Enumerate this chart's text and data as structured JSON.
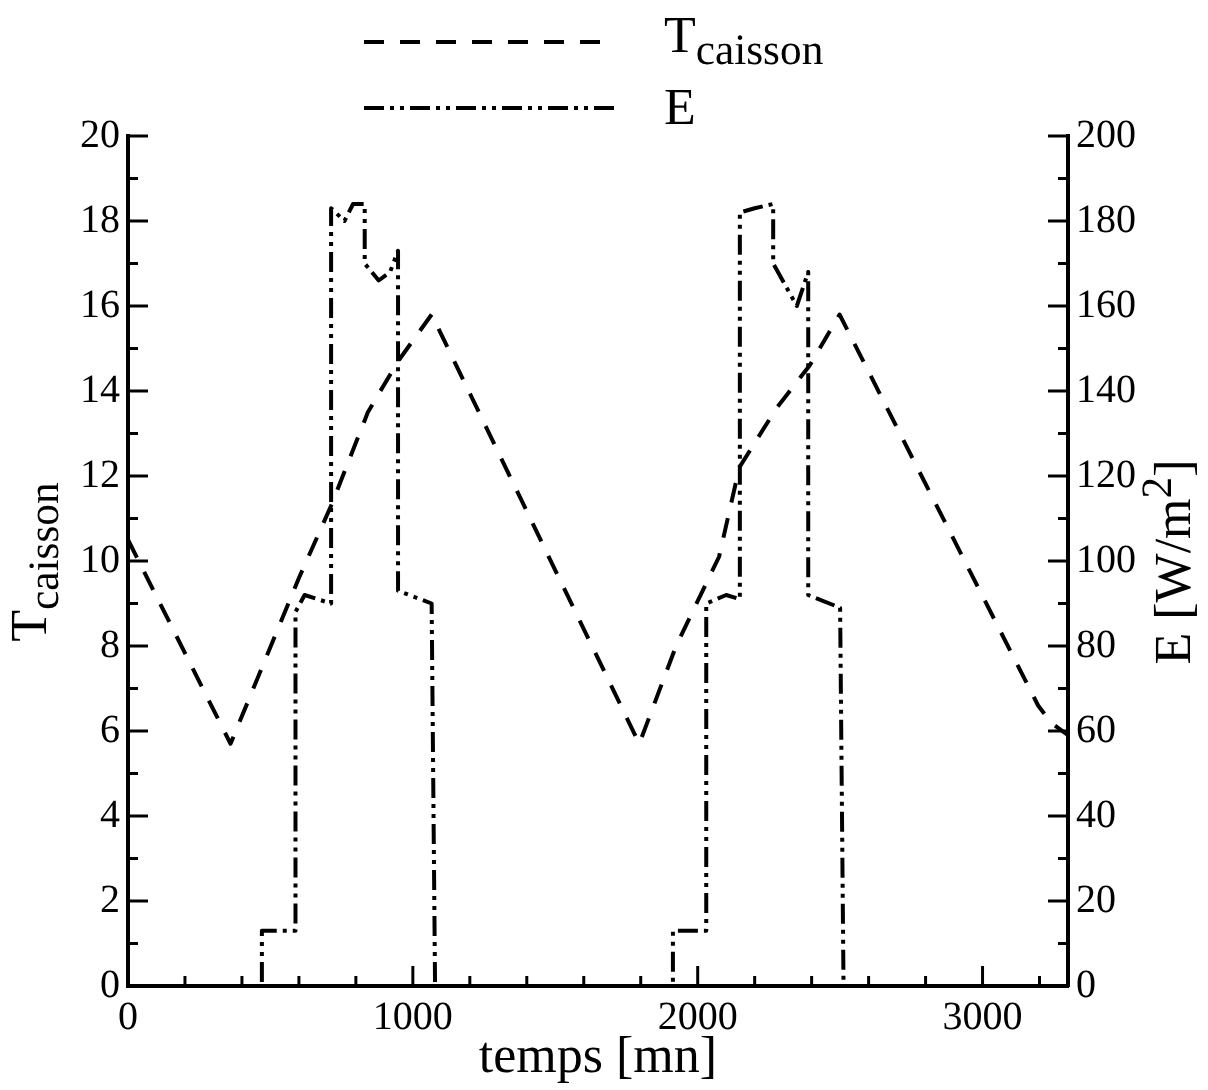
{
  "chart_data": {
    "type": "line",
    "xlabel": "temps [mn]",
    "ylabel": "T$_{caisson}$",
    "y2label": "E [W/m$^{2}$]",
    "legend": "top",
    "grid": false,
    "line_style": "dashed",
    "marker": "none",
    "xlim": [
      0,
      3300
    ],
    "xticks": [
      0,
      {
        "value": 200,
        "label": null
      },
      {
        "value": 400,
        "label": null
      },
      {
        "value": 600,
        "label": null
      },
      {
        "value": 800,
        "label": null
      },
      1000,
      {
        "value": 1200,
        "label": null
      },
      {
        "value": 1400,
        "label": null
      },
      {
        "value": 1600,
        "label": null
      },
      {
        "value": 1800,
        "label": null
      },
      2000,
      {
        "value": 2200,
        "label": null
      },
      {
        "value": 2400,
        "label": null
      },
      {
        "value": 2600,
        "label": null
      },
      {
        "value": 2800,
        "label": null
      },
      3000,
      {
        "value": 3200,
        "label": null
      }
    ],
    "ylim": [
      0,
      20
    ],
    "yticks": [
      0,
      {
        "value": 1,
        "label": null
      },
      2,
      {
        "value": 3,
        "label": null
      },
      4,
      {
        "value": 5,
        "label": null
      },
      6,
      {
        "value": 7,
        "label": null
      },
      8,
      {
        "value": 9,
        "label": null
      },
      10,
      {
        "value": 11,
        "label": null
      },
      12,
      {
        "value": 13,
        "label": null
      },
      14,
      {
        "value": 15,
        "label": null
      },
      16,
      {
        "value": 17,
        "label": null
      },
      18,
      {
        "value": 19,
        "label": null
      },
      20
    ],
    "y2lim": [
      0,
      200
    ],
    "y2ticks": [
      0,
      {
        "value": 10,
        "label": null
      },
      20,
      {
        "value": 30,
        "label": null
      },
      40,
      {
        "value": 50,
        "label": null
      },
      60,
      {
        "value": 70,
        "label": null
      },
      80,
      {
        "value": 90,
        "label": null
      },
      100,
      {
        "value": 110,
        "label": null
      },
      120,
      {
        "value": 130,
        "label": null
      },
      140,
      {
        "value": 150,
        "label": null
      },
      160,
      {
        "value": 170,
        "label": null
      },
      180,
      {
        "value": 190,
        "label": null
      },
      200
    ],
    "series": [
      {
        "name": "T$_{caisson}$",
        "color": "#000000",
        "x": [
          0,
          360,
          600,
          713,
          842,
          948,
          1066,
          1571,
          1795,
          1924,
          2075,
          2146,
          2277,
          2393,
          2498,
          3195,
          3240,
          3300
        ],
        "values": [
          10.5,
          5.7,
          9.6,
          11.3,
          13.5,
          14.7,
          15.8,
          8.8,
          5.7,
          8.0,
          10.1,
          12.2,
          13.6,
          14.6,
          15.8,
          6.6,
          6.2,
          5.9
        ]
      },
      {
        "name": "E",
        "color": "#000000",
        "line_style": "dashdotdot",
        "axis": "y2",
        "x": [
          0,
          470,
          470,
          588,
          588,
          620,
          713,
          713,
          760,
          790,
          831,
          831,
          880,
          920,
          948,
          948,
          1066,
          1066,
          1078,
          1913,
          1913,
          2030,
          2030,
          2100,
          2148,
          2148,
          2200,
          2265,
          2265,
          2348,
          2388,
          2388,
          2500,
          2500,
          2512,
          3300
        ],
        "values": [
          0,
          0,
          13,
          13,
          88,
          92,
          90,
          183,
          180,
          184,
          184,
          170,
          166,
          168,
          173,
          93,
          90,
          90,
          0,
          0,
          13,
          13,
          90,
          92,
          91,
          182,
          183,
          184,
          170,
          160,
          168,
          92,
          89,
          89,
          0,
          0
        ]
      }
    ]
  }
}
